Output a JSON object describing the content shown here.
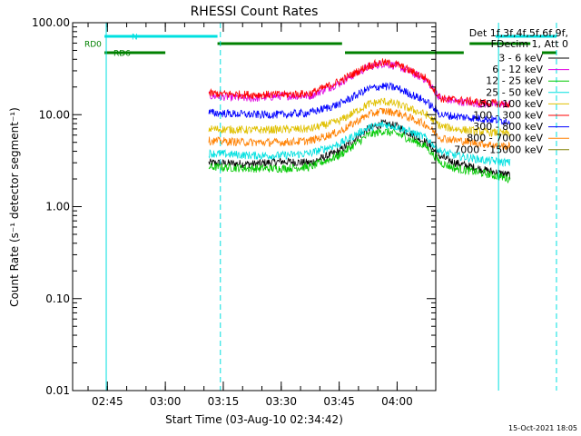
{
  "chart_data": {
    "type": "line",
    "title": "RHESSI Count Rates",
    "xlabel": "Start Time (03-Aug-10 02:34:42)",
    "ylabel": "Count Rate (s⁻¹ detector segment⁻¹)",
    "yscale": "log",
    "xlim": [
      "02:36:00",
      "04:10:00"
    ],
    "ylim": [
      0.01,
      100
    ],
    "x_ticks": [
      "02:45",
      "03:00",
      "03:15",
      "03:30",
      "03:45",
      "04:00"
    ],
    "y_ticks": [
      {
        "value": 0.01,
        "label": "0.01"
      },
      {
        "value": 0.1,
        "label": "0.10"
      },
      {
        "value": 1,
        "label": "1.00"
      },
      {
        "value": 10,
        "label": "10.00"
      },
      {
        "value": 100,
        "label": "100.00"
      }
    ],
    "grid": false,
    "legend_position": "right",
    "legend_header": [
      "Det 1f,3f,4f,5f,6f,9f,",
      "FDecim 1, Att 0"
    ],
    "series": [
      {
        "name": "3 - 6 keV",
        "color": "#000000",
        "values": [
          [
            2.75,
            3.0
          ],
          [
            3.5,
            2.9
          ],
          [
            4.0,
            3.1
          ],
          [
            4.5,
            3.0
          ],
          [
            5.0,
            4.0
          ],
          [
            5.5,
            7.0
          ],
          [
            5.75,
            8.0
          ],
          [
            6.0,
            7.5
          ],
          [
            6.5,
            5.0
          ],
          [
            6.75,
            3.5
          ],
          [
            7.0,
            3.0
          ],
          [
            7.5,
            2.5
          ],
          [
            7.95,
            2.2
          ]
        ]
      },
      {
        "name": "6 - 12 keV",
        "color": "#e000e0",
        "values": [
          [
            2.75,
            16
          ],
          [
            3.5,
            15
          ],
          [
            4.0,
            16
          ],
          [
            4.5,
            16
          ],
          [
            5.0,
            22
          ],
          [
            5.5,
            33
          ],
          [
            5.75,
            36
          ],
          [
            6.0,
            34
          ],
          [
            6.5,
            24
          ],
          [
            6.75,
            15
          ],
          [
            7.0,
            14
          ],
          [
            7.5,
            13
          ],
          [
            7.95,
            13
          ]
        ]
      },
      {
        "name": "12 - 25 keV",
        "color": "#00c800",
        "values": [
          [
            2.75,
            2.7
          ],
          [
            3.5,
            2.6
          ],
          [
            4.0,
            2.6
          ],
          [
            4.5,
            2.7
          ],
          [
            5.0,
            3.6
          ],
          [
            5.5,
            6.0
          ],
          [
            5.75,
            6.6
          ],
          [
            6.0,
            6.2
          ],
          [
            6.5,
            4.5
          ],
          [
            6.75,
            3.0
          ],
          [
            7.0,
            2.6
          ],
          [
            7.5,
            2.3
          ],
          [
            7.95,
            2.0
          ]
        ]
      },
      {
        "name": "25 - 50 keV",
        "color": "#00e0e0",
        "values": [
          [
            2.75,
            3.8
          ],
          [
            3.5,
            3.6
          ],
          [
            4.0,
            3.6
          ],
          [
            4.5,
            3.8
          ],
          [
            5.0,
            4.8
          ],
          [
            5.5,
            7.2
          ],
          [
            5.75,
            7.8
          ],
          [
            6.0,
            7.4
          ],
          [
            6.5,
            5.6
          ],
          [
            6.75,
            4.0
          ],
          [
            7.0,
            3.6
          ],
          [
            7.5,
            3.2
          ],
          [
            7.95,
            3.0
          ]
        ]
      },
      {
        "name": "50 - 100 keV",
        "color": "#e0c000",
        "values": [
          [
            2.75,
            7.0
          ],
          [
            3.5,
            6.8
          ],
          [
            4.0,
            6.9
          ],
          [
            4.5,
            7.0
          ],
          [
            5.0,
            8.5
          ],
          [
            5.5,
            13
          ],
          [
            5.75,
            14
          ],
          [
            6.0,
            13
          ],
          [
            6.5,
            10
          ],
          [
            6.75,
            7.5
          ],
          [
            7.0,
            7.0
          ],
          [
            7.5,
            6.5
          ],
          [
            7.95,
            6.2
          ]
        ]
      },
      {
        "name": "100 - 300 keV",
        "color": "#ff0000",
        "values": [
          [
            2.75,
            17
          ],
          [
            3.5,
            16.5
          ],
          [
            4.0,
            16.5
          ],
          [
            4.5,
            17
          ],
          [
            5.0,
            23
          ],
          [
            5.5,
            34
          ],
          [
            5.75,
            37
          ],
          [
            6.0,
            35
          ],
          [
            6.5,
            25
          ],
          [
            6.75,
            15
          ],
          [
            7.0,
            14.5
          ],
          [
            7.5,
            13.5
          ],
          [
            7.95,
            13
          ]
        ]
      },
      {
        "name": "300 - 800 keV",
        "color": "#0000ff",
        "values": [
          [
            2.75,
            10.5
          ],
          [
            3.5,
            10
          ],
          [
            4.0,
            10
          ],
          [
            4.5,
            10.5
          ],
          [
            5.0,
            13
          ],
          [
            5.5,
            19
          ],
          [
            5.75,
            20.5
          ],
          [
            6.0,
            19.5
          ],
          [
            6.5,
            14
          ],
          [
            6.75,
            10
          ],
          [
            7.0,
            9.6
          ],
          [
            7.5,
            9
          ],
          [
            7.95,
            8.5
          ]
        ]
      },
      {
        "name": "800 - 7000 keV",
        "color": "#ff8000",
        "values": [
          [
            2.75,
            5.2
          ],
          [
            3.5,
            5.0
          ],
          [
            4.0,
            5.0
          ],
          [
            4.5,
            5.2
          ],
          [
            5.0,
            6.5
          ],
          [
            5.5,
            10
          ],
          [
            5.75,
            11
          ],
          [
            6.0,
            10.5
          ],
          [
            6.5,
            7.8
          ],
          [
            6.75,
            5.6
          ],
          [
            7.0,
            5.3
          ],
          [
            7.5,
            4.8
          ],
          [
            7.95,
            4.5
          ]
        ]
      },
      {
        "name": "7000 - 15000 keV",
        "color": "#808000",
        "values": []
      }
    ],
    "flags": {
      "N": {
        "color": "#00e0e0",
        "segments": [
          [
            0.95,
            2.9
          ],
          [
            7.7,
            8.75
          ]
        ]
      },
      "RD0": {
        "color": "#008000",
        "segments": [
          [
            2.9,
            5.05
          ],
          [
            7.25,
            8.3
          ]
        ]
      },
      "RD6": {
        "color": "#008000",
        "segments": [
          [
            0.95,
            2.0
          ],
          [
            5.1,
            7.15
          ],
          [
            8.5,
            8.75
          ]
        ]
      }
    },
    "vertical_markers": [
      {
        "x": 0.98,
        "color": "#00e0e0",
        "style": "solid"
      },
      {
        "x": 2.95,
        "color": "#00e0e0",
        "style": "dashed"
      },
      {
        "x": 7.75,
        "color": "#00e0e0",
        "style": "solid"
      },
      {
        "x": 8.75,
        "color": "#00e0e0",
        "style": "dashed"
      }
    ]
  },
  "timestamp": "15-Oct-2021 18:05"
}
